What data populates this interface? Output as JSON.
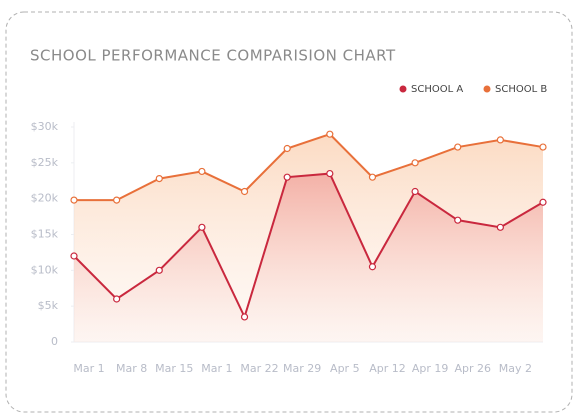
{
  "chart_data": {
    "type": "line",
    "title": "SCHOOL PERFORMANCE COMPARISION CHART",
    "categories": [
      "Mar 1",
      "Mar 8",
      "Mar 15",
      "Mar 1",
      "Mar 22",
      "Mar 29",
      "Apr 5",
      "Apr 12",
      "Apr 19",
      "Apr 26",
      "May 2",
      null
    ],
    "series": [
      {
        "name": "SCHOOL A",
        "color": "#c9283e",
        "values": [
          12000,
          6000,
          10000,
          16000,
          3500,
          23000,
          23500,
          10500,
          21000,
          17000,
          16000,
          19500
        ]
      },
      {
        "name": "SCHOOL B",
        "color": "#e8703a",
        "values": [
          19800,
          19800,
          22800,
          23800,
          21000,
          27000,
          29000,
          23000,
          25000,
          27200,
          28200,
          27200
        ]
      }
    ],
    "ylim": [
      0,
      30000
    ],
    "yticks": [
      0,
      {
        "value": 5000,
        "label": "$5k"
      },
      {
        "value": 10000,
        "label": "$10k"
      },
      {
        "value": 15000,
        "label": "$15k"
      },
      {
        "value": 20000,
        "label": "$20k"
      },
      {
        "value": 25000,
        "label": "$25k"
      },
      {
        "value": 30000,
        "label": "$30k"
      }
    ],
    "legend": "top-right"
  }
}
